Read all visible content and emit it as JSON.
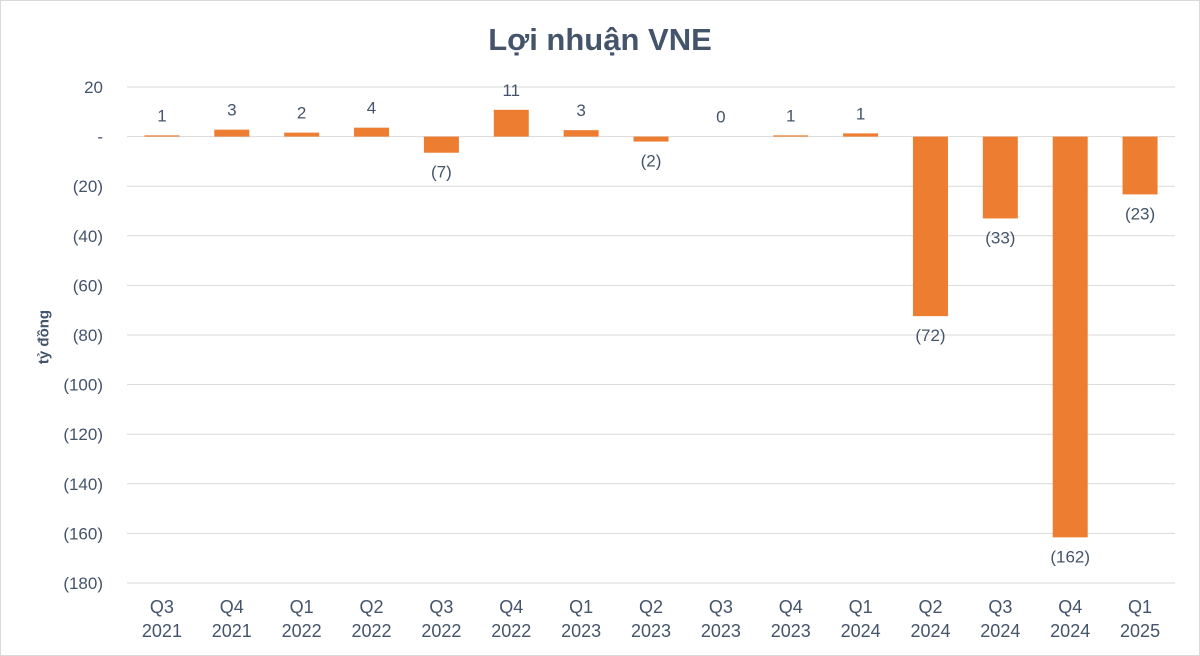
{
  "chart_data": {
    "type": "bar",
    "title": "Lợi nhuận VNE",
    "ylabel": "tỷ đồng",
    "xlabel": "",
    "ylim": [
      -180,
      20
    ],
    "yticks": [
      20,
      0,
      -20,
      -40,
      -60,
      -80,
      -100,
      -120,
      -140,
      -160,
      -180
    ],
    "ytick_labels": [
      "20",
      "-",
      "(20)",
      "(40)",
      "(60)",
      "(80)",
      "(100)",
      "(120)",
      "(140)",
      "(160)",
      "(180)"
    ],
    "categories": [
      [
        "Q3",
        "2021"
      ],
      [
        "Q4",
        "2021"
      ],
      [
        "Q1",
        "2022"
      ],
      [
        "Q2",
        "2022"
      ],
      [
        "Q3",
        "2022"
      ],
      [
        "Q4",
        "2022"
      ],
      [
        "Q1",
        "2023"
      ],
      [
        "Q2",
        "2023"
      ],
      [
        "Q3",
        "2023"
      ],
      [
        "Q4",
        "2023"
      ],
      [
        "Q1",
        "2024"
      ],
      [
        "Q2",
        "2024"
      ],
      [
        "Q3",
        "2024"
      ],
      [
        "Q4",
        "2024"
      ],
      [
        "Q1",
        "2025"
      ]
    ],
    "values": [
      0.5,
      2.8,
      1.6,
      3.6,
      -6.5,
      10.8,
      2.6,
      -2.0,
      0,
      0.5,
      1.3,
      -72.4,
      -33.0,
      -161.6,
      -23.3
    ],
    "data_labels": [
      "1",
      "3",
      "2",
      "4",
      "(7)",
      "11",
      "3",
      "(2)",
      "0",
      "1",
      "1",
      "(72)",
      "(33)",
      "(162)",
      "(23)"
    ],
    "grid": true,
    "bar_color": "#ed7d31",
    "grid_color": "#d9d9d9",
    "text_color": "#44546a"
  }
}
